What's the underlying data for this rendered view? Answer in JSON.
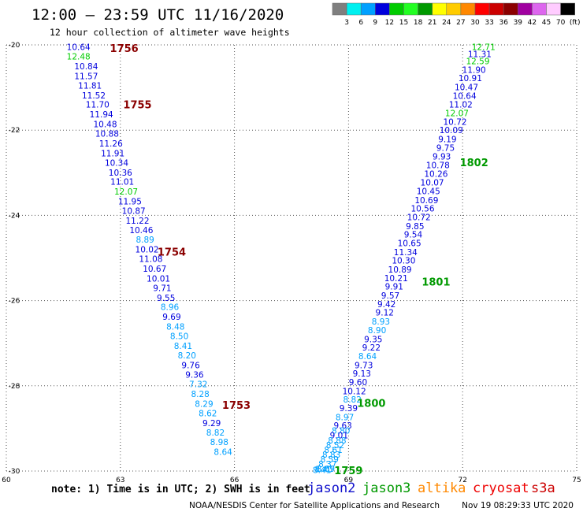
{
  "header": {
    "title": "12:00 – 23:59 UTC 11/16/2020",
    "subtitle": "12 hour collection of altimeter wave heights"
  },
  "colorbar": {
    "bins": [
      {
        "color": "#7f7f7f",
        "label": "3"
      },
      {
        "color": "#00f0f0",
        "label": "6"
      },
      {
        "color": "#00a0ff",
        "label": "9"
      },
      {
        "color": "#0000dd",
        "label": "12"
      },
      {
        "color": "#00cc00",
        "label": "15"
      },
      {
        "color": "#22ff22",
        "label": "18"
      },
      {
        "color": "#009900",
        "label": "21"
      },
      {
        "color": "#ffff00",
        "label": "24"
      },
      {
        "color": "#ffcc00",
        "label": "27"
      },
      {
        "color": "#ff8800",
        "label": "30"
      },
      {
        "color": "#ff0000",
        "label": "33"
      },
      {
        "color": "#cc0000",
        "label": "36"
      },
      {
        "color": "#8b0000",
        "label": "39"
      },
      {
        "color": "#a000a0",
        "label": "42"
      },
      {
        "color": "#dd66ee",
        "label": "45"
      },
      {
        "color": "#ffccff",
        "label": "70"
      },
      {
        "color": "#000000",
        "label": "(ft)"
      }
    ]
  },
  "footer": {
    "note": "note: 1) Time is in UTC; 2) SWH is in feet",
    "credit": "NOAA/NESDIS Center for Satellite Applications and Research",
    "timestamp": "Nov 19 08:29:33 UTC 2020"
  },
  "legend": [
    {
      "name": "jason2",
      "color": "#1010cc"
    },
    {
      "name": "jason3",
      "color": "#009900"
    },
    {
      "name": "altika",
      "color": "#ff8800"
    },
    {
      "name": "cryosat",
      "color": "#ee0000"
    },
    {
      "name": "s3a",
      "color": "#cc0000"
    }
  ],
  "chart_data": {
    "type": "scatter",
    "title": "12:00 – 23:59 UTC 11/16/2020",
    "xlim": [
      60,
      75
    ],
    "ylim": [
      -30,
      -20
    ],
    "x_ticks": [
      "60",
      "63",
      "66",
      "69",
      "72",
      "75"
    ],
    "y_ticks": [
      "-20",
      "-22",
      "-24",
      "-26",
      "-28",
      "-30"
    ],
    "grid": true,
    "color_by_value": true,
    "color_breaks": [
      3,
      6,
      9,
      12,
      15,
      18,
      21,
      24,
      27,
      30,
      33,
      36,
      39,
      42,
      45,
      70
    ],
    "series": [
      {
        "name": "jason2",
        "labels": [
          "10.64",
          "12.48",
          "10.84",
          "11.57",
          "11.81",
          "11.52",
          "11.70",
          "11.94",
          "10.48",
          "10.88",
          "11.26",
          "11.91",
          "10.34",
          "10.36",
          "11.01",
          "12.07",
          "11.95",
          "10.87",
          "11.22",
          "10.46",
          "8.89",
          "10.02",
          "11.08",
          "10.67",
          "10.01",
          "9.71",
          "9.55",
          "8.96",
          "9.69",
          "8.48",
          "8.50",
          "8.41",
          "8.20",
          "9.76",
          "9.36",
          "7.32",
          "8.28",
          "8.29",
          "8.62",
          "9.29",
          "8.82",
          "8.98",
          "8.64"
        ],
        "points": [
          {
            "x": 61.9,
            "y": -20.05,
            "v": 10.64
          },
          {
            "x": 61.9,
            "y": -20.27,
            "v": 12.48
          },
          {
            "x": 62.1,
            "y": -20.5,
            "v": 10.84
          },
          {
            "x": 62.1,
            "y": -20.73,
            "v": 11.57
          },
          {
            "x": 62.2,
            "y": -20.95,
            "v": 11.81
          },
          {
            "x": 62.3,
            "y": -21.18,
            "v": 11.52
          },
          {
            "x": 62.4,
            "y": -21.4,
            "v": 11.7
          },
          {
            "x": 62.5,
            "y": -21.63,
            "v": 11.94
          },
          {
            "x": 62.6,
            "y": -21.86,
            "v": 10.48
          },
          {
            "x": 62.65,
            "y": -22.08,
            "v": 10.88
          },
          {
            "x": 62.75,
            "y": -22.31,
            "v": 11.26
          },
          {
            "x": 62.8,
            "y": -22.54,
            "v": 11.91
          },
          {
            "x": 62.9,
            "y": -22.76,
            "v": 10.34
          },
          {
            "x": 63.0,
            "y": -22.99,
            "v": 10.36
          },
          {
            "x": 63.05,
            "y": -23.21,
            "v": 11.01
          },
          {
            "x": 63.15,
            "y": -23.44,
            "v": 12.07
          },
          {
            "x": 63.25,
            "y": -23.67,
            "v": 11.95
          },
          {
            "x": 63.35,
            "y": -23.89,
            "v": 10.87
          },
          {
            "x": 63.45,
            "y": -24.12,
            "v": 11.22
          },
          {
            "x": 63.55,
            "y": -24.34,
            "v": 10.46
          },
          {
            "x": 63.65,
            "y": -24.57,
            "v": 8.89
          },
          {
            "x": 63.7,
            "y": -24.8,
            "v": 10.02
          },
          {
            "x": 63.8,
            "y": -25.02,
            "v": 11.08
          },
          {
            "x": 63.9,
            "y": -25.25,
            "v": 10.67
          },
          {
            "x": 64.0,
            "y": -25.48,
            "v": 10.01
          },
          {
            "x": 64.1,
            "y": -25.7,
            "v": 9.71
          },
          {
            "x": 64.2,
            "y": -25.93,
            "v": 9.55
          },
          {
            "x": 64.3,
            "y": -26.15,
            "v": 8.96
          },
          {
            "x": 64.35,
            "y": -26.38,
            "v": 9.69
          },
          {
            "x": 64.45,
            "y": -26.61,
            "v": 8.48
          },
          {
            "x": 64.55,
            "y": -26.83,
            "v": 8.5
          },
          {
            "x": 64.65,
            "y": -27.06,
            "v": 8.41
          },
          {
            "x": 64.75,
            "y": -27.28,
            "v": 8.2
          },
          {
            "x": 64.85,
            "y": -27.51,
            "v": 9.76
          },
          {
            "x": 64.95,
            "y": -27.74,
            "v": 9.36
          },
          {
            "x": 65.05,
            "y": -27.96,
            "v": 7.32
          },
          {
            "x": 65.1,
            "y": -28.19,
            "v": 8.28
          },
          {
            "x": 65.2,
            "y": -28.42,
            "v": 8.29
          },
          {
            "x": 65.3,
            "y": -28.64,
            "v": 8.62
          },
          {
            "x": 65.4,
            "y": -28.87,
            "v": 9.29
          },
          {
            "x": 65.5,
            "y": -29.09,
            "v": 8.82
          },
          {
            "x": 65.6,
            "y": -29.32,
            "v": 8.98
          },
          {
            "x": 65.7,
            "y": -29.55,
            "v": 8.64
          }
        ]
      },
      {
        "name": "jason3",
        "labels": [
          "12.71",
          "11.31",
          "12.59",
          "11.90",
          "10.91",
          "10.47",
          "10.64",
          "11.02",
          "12.07",
          "10.72",
          "10.09",
          "9.19",
          "9.75",
          "9.93",
          "10.78",
          "10.26",
          "10.07",
          "10.45",
          "10.69",
          "10.56",
          "10.72",
          "9.85",
          "9.54",
          "10.65",
          "11.34",
          "10.30",
          "10.89",
          "10.21",
          "9.91",
          "9.57",
          "9.42",
          "9.12",
          "8.93",
          "8.90",
          "9.35",
          "9.22",
          "8.64",
          "9.73",
          "9.13",
          "9.60",
          "10.12",
          "8.82",
          "9.39",
          "8.97",
          "9.63",
          "8.80",
          "9.01",
          "8.88",
          "8.52",
          "8.61",
          "8.83",
          "8.59",
          "8.37",
          "8.69",
          "8.40",
          "8.41"
        ],
        "points": [
          {
            "x": 72.55,
            "y": -20.05,
            "v": 12.71
          },
          {
            "x": 72.45,
            "y": -20.21,
            "v": 11.31
          },
          {
            "x": 72.4,
            "y": -20.38,
            "v": 12.59
          },
          {
            "x": 72.3,
            "y": -20.58,
            "v": 11.9
          },
          {
            "x": 72.2,
            "y": -20.78,
            "v": 10.91
          },
          {
            "x": 72.1,
            "y": -20.99,
            "v": 10.47
          },
          {
            "x": 72.05,
            "y": -21.19,
            "v": 10.64
          },
          {
            "x": 71.95,
            "y": -21.4,
            "v": 11.02
          },
          {
            "x": 71.85,
            "y": -21.6,
            "v": 12.07
          },
          {
            "x": 71.8,
            "y": -21.8,
            "v": 10.72
          },
          {
            "x": 71.7,
            "y": -22.0,
            "v": 10.09
          },
          {
            "x": 71.6,
            "y": -22.21,
            "v": 9.19
          },
          {
            "x": 71.55,
            "y": -22.41,
            "v": 9.75
          },
          {
            "x": 71.45,
            "y": -22.62,
            "v": 9.93
          },
          {
            "x": 71.35,
            "y": -22.82,
            "v": 10.78
          },
          {
            "x": 71.3,
            "y": -23.02,
            "v": 10.26
          },
          {
            "x": 71.2,
            "y": -23.23,
            "v": 10.07
          },
          {
            "x": 71.1,
            "y": -23.43,
            "v": 10.45
          },
          {
            "x": 71.05,
            "y": -23.64,
            "v": 10.69
          },
          {
            "x": 70.95,
            "y": -23.84,
            "v": 10.56
          },
          {
            "x": 70.85,
            "y": -24.04,
            "v": 10.72
          },
          {
            "x": 70.75,
            "y": -24.25,
            "v": 9.85
          },
          {
            "x": 70.7,
            "y": -24.45,
            "v": 9.54
          },
          {
            "x": 70.6,
            "y": -24.65,
            "v": 10.65
          },
          {
            "x": 70.5,
            "y": -24.86,
            "v": 11.34
          },
          {
            "x": 70.45,
            "y": -25.06,
            "v": 10.3
          },
          {
            "x": 70.35,
            "y": -25.27,
            "v": 10.89
          },
          {
            "x": 70.25,
            "y": -25.47,
            "v": 10.21
          },
          {
            "x": 70.2,
            "y": -25.67,
            "v": 9.91
          },
          {
            "x": 70.1,
            "y": -25.88,
            "v": 9.57
          },
          {
            "x": 70.0,
            "y": -26.08,
            "v": 9.42
          },
          {
            "x": 69.95,
            "y": -26.28,
            "v": 9.12
          },
          {
            "x": 69.85,
            "y": -26.49,
            "v": 8.93
          },
          {
            "x": 69.75,
            "y": -26.69,
            "v": 8.9
          },
          {
            "x": 69.65,
            "y": -26.9,
            "v": 9.35
          },
          {
            "x": 69.6,
            "y": -27.1,
            "v": 9.22
          },
          {
            "x": 69.5,
            "y": -27.3,
            "v": 8.64
          },
          {
            "x": 69.4,
            "y": -27.51,
            "v": 9.73
          },
          {
            "x": 69.35,
            "y": -27.71,
            "v": 9.13
          },
          {
            "x": 69.25,
            "y": -27.91,
            "v": 9.6
          },
          {
            "x": 69.15,
            "y": -28.12,
            "v": 10.12
          },
          {
            "x": 69.1,
            "y": -28.32,
            "v": 8.82
          },
          {
            "x": 69.0,
            "y": -28.52,
            "v": 9.39
          },
          {
            "x": 68.9,
            "y": -28.73,
            "v": 8.97
          },
          {
            "x": 68.85,
            "y": -28.93,
            "v": 9.63
          },
          {
            "x": 68.8,
            "y": -29.05,
            "v": 8.8
          },
          {
            "x": 68.75,
            "y": -29.16,
            "v": 9.01
          },
          {
            "x": 68.7,
            "y": -29.28,
            "v": 8.88
          },
          {
            "x": 68.65,
            "y": -29.39,
            "v": 8.52
          },
          {
            "x": 68.6,
            "y": -29.5,
            "v": 8.61
          },
          {
            "x": 68.55,
            "y": -29.61,
            "v": 8.83
          },
          {
            "x": 68.5,
            "y": -29.72,
            "v": 8.59
          },
          {
            "x": 68.45,
            "y": -29.83,
            "v": 8.37
          },
          {
            "x": 68.4,
            "y": -29.94,
            "v": 8.69
          },
          {
            "x": 68.35,
            "y": -29.95,
            "v": 8.4
          },
          {
            "x": 68.3,
            "y": -29.97,
            "v": 8.41
          }
        ]
      }
    ],
    "annotations": [
      {
        "text": "1756",
        "x": 63.1,
        "y": -20.07,
        "color": "#8b0000"
      },
      {
        "text": "1755",
        "x": 63.45,
        "y": -21.4,
        "color": "#8b0000"
      },
      {
        "text": "1754",
        "x": 64.35,
        "y": -24.85,
        "color": "#8b0000"
      },
      {
        "text": "1753",
        "x": 66.05,
        "y": -28.45,
        "color": "#8b0000"
      },
      {
        "text": "1802",
        "x": 72.3,
        "y": -22.75,
        "color": "#009900"
      },
      {
        "text": "1801",
        "x": 71.3,
        "y": -25.55,
        "color": "#009900"
      },
      {
        "text": "1800",
        "x": 69.6,
        "y": -28.4,
        "color": "#009900"
      },
      {
        "text": "1759",
        "x": 69.0,
        "y": -29.98,
        "color": "#009900"
      }
    ]
  }
}
